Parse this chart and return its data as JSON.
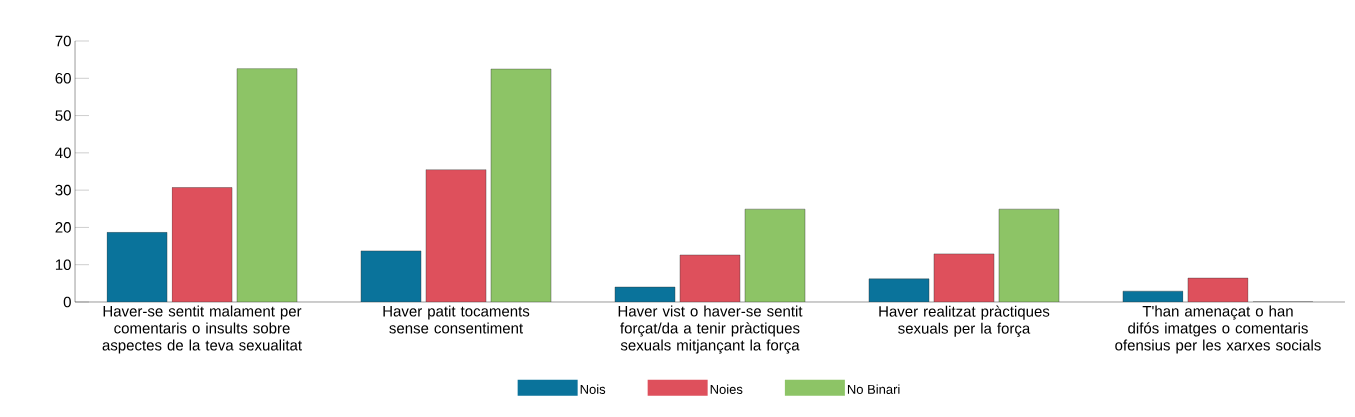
{
  "chart_data": {
    "type": "bar",
    "categories": [
      "Haver-se sentit malament per comentaris o insults sobre aspectes de la teva sexualitat",
      "Haver patit tocaments sense consentiment",
      "Haver vist o haver-se sentit forçat/da a tenir pràctiques sexuals mitjançant la força",
      "Haver realitzat pràctiques sexuals per la força",
      "T'han amenaçat o han difós imatges o comentaris ofensius per les xarxes socials"
    ],
    "series": [
      {
        "name": "Nois",
        "color": "#0a739b",
        "values": [
          18.7,
          13.7,
          4.0,
          6.2,
          2.9
        ]
      },
      {
        "name": "Noies",
        "color": "#de505c",
        "values": [
          30.7,
          35.5,
          12.6,
          12.9,
          6.4
        ]
      },
      {
        "name": "No Binari",
        "color": "#8dc466",
        "values": [
          62.6,
          62.5,
          24.9,
          24.9,
          0
        ]
      }
    ],
    "ylim": [
      0,
      70
    ],
    "yticks": [
      0,
      10,
      20,
      30,
      40,
      50,
      60,
      70
    ],
    "grid": false,
    "legend": "bottom"
  }
}
